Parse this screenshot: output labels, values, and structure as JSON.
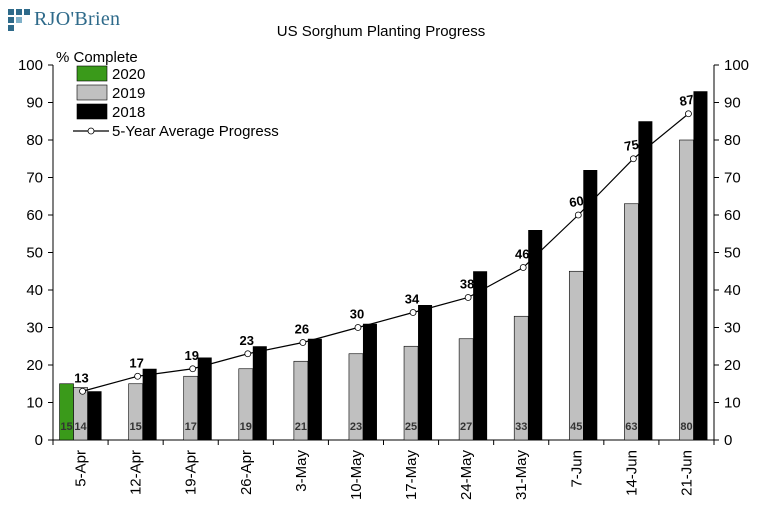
{
  "logo": {
    "text": "RJO'Brien"
  },
  "chart_data": {
    "type": "bar",
    "title": "US Sorghum Planting Progress",
    "ylabel": "% Complete",
    "xlabel": "",
    "ylim": [
      0,
      100
    ],
    "yticks": [
      0,
      10,
      20,
      30,
      40,
      50,
      60,
      70,
      80,
      90,
      100
    ],
    "categories": [
      "5-Apr",
      "12-Apr",
      "19-Apr",
      "26-Apr",
      "3-May",
      "10-May",
      "17-May",
      "24-May",
      "31-May",
      "7-Jun",
      "14-Jun",
      "21-Jun"
    ],
    "series": [
      {
        "name": "2020",
        "type": "bar",
        "color": "#3a9a1a",
        "values": [
          15,
          null,
          null,
          null,
          null,
          null,
          null,
          null,
          null,
          null,
          null,
          null
        ],
        "labels": [
          "15",
          "",
          "",
          "",
          "",
          "",
          "",
          "",
          "",
          "",
          "",
          ""
        ]
      },
      {
        "name": "2019",
        "type": "bar",
        "color": "#c0c0c0",
        "values": [
          14,
          15,
          17,
          19,
          21,
          23,
          25,
          27,
          33,
          45,
          63,
          80
        ],
        "labels": [
          "14",
          "15",
          "17",
          "19",
          "21",
          "23",
          "25",
          "27",
          "33",
          "45",
          "63",
          "80"
        ]
      },
      {
        "name": "2018",
        "type": "bar",
        "color": "#000000",
        "values": [
          13,
          19,
          22,
          25,
          27,
          31,
          36,
          45,
          56,
          72,
          85,
          93
        ]
      },
      {
        "name": "5-Year Average Progress",
        "type": "line",
        "color": "#000000",
        "values": [
          13,
          17,
          19,
          23,
          26,
          30,
          34,
          38,
          46,
          60,
          75,
          87
        ],
        "labels": [
          "13",
          "17",
          "19",
          "23",
          "26",
          "30",
          "34",
          "38",
          "46",
          "60",
          "75",
          "87"
        ]
      }
    ],
    "legend": "top-left",
    "grid": false
  }
}
